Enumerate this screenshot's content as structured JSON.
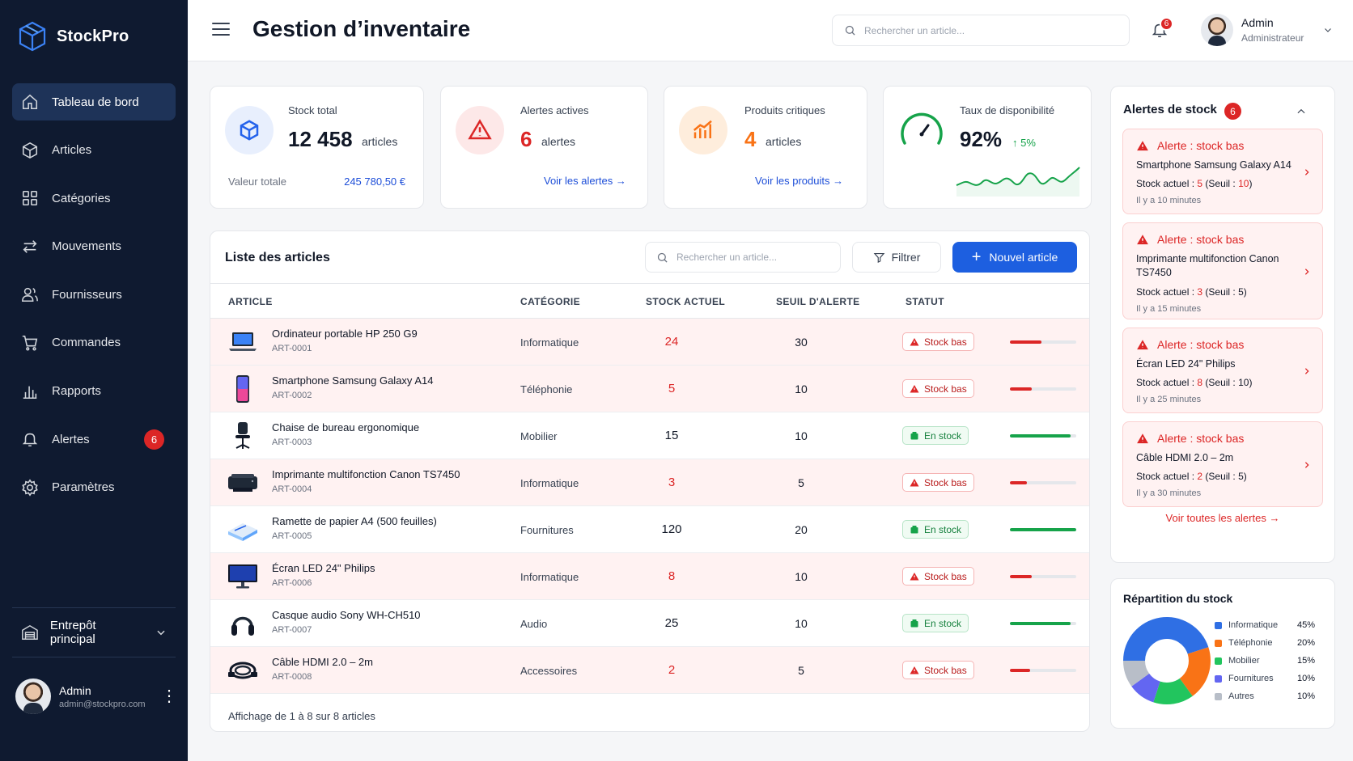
{
  "app": {
    "name": "StockPro"
  },
  "sidebar": {
    "items": [
      {
        "label": "Tableau de bord",
        "icon": "home-icon"
      },
      {
        "label": "Articles",
        "icon": "box-icon"
      },
      {
        "label": "Catégories",
        "icon": "grid-icon"
      },
      {
        "label": "Mouvements",
        "icon": "transfer-icon"
      },
      {
        "label": "Fournisseurs",
        "icon": "users-icon"
      },
      {
        "label": "Commandes",
        "icon": "cart-icon"
      },
      {
        "label": "Rapports",
        "icon": "chart-icon"
      },
      {
        "label": "Alertes",
        "icon": "bell-icon",
        "badge": "6"
      },
      {
        "label": "Paramètres",
        "icon": "gear-icon"
      }
    ],
    "warehouse": "Entrepôt principal",
    "user": {
      "name": "Admin",
      "email": "admin@stockpro.com"
    }
  },
  "header": {
    "title": "Gestion d’inventaire",
    "search_placeholder": "Rechercher un article...",
    "notif_count": "6",
    "user": {
      "name": "Admin",
      "role": "Administrateur"
    }
  },
  "kpis": {
    "stock": {
      "label": "Stock total",
      "value": "12 458",
      "unit": "articles",
      "sub_label": "Valeur totale",
      "sub_value": "245 780,50 €"
    },
    "alerts": {
      "label": "Alertes actives",
      "value": "6",
      "unit": "alertes",
      "link": "Voir les alertes →"
    },
    "critical": {
      "label": "Produits critiques",
      "value": "4",
      "unit": "articles",
      "link": "Voir les produits →"
    },
    "availability": {
      "label": "Taux de disponibilité",
      "value": "92%",
      "delta": "↑ 5%"
    }
  },
  "list": {
    "title": "Liste des articles",
    "search_placeholder": "Rechercher un article...",
    "filter_label": "Filtrer",
    "new_label": "Nouvel article",
    "columns": [
      "ARTICLE",
      "CATÉGORIE",
      "STOCK ACTUEL",
      "SEUIL D'ALERTE",
      "STATUT"
    ],
    "rows": [
      {
        "name": "Ordinateur portable HP 250 G9",
        "ref": "ART-0001",
        "category": "Informatique",
        "stock": "24",
        "threshold": "30",
        "status": "Stock bas",
        "level": "bas",
        "fill": 0.48,
        "thumb": "laptop"
      },
      {
        "name": "Smartphone Samsung Galaxy A14",
        "ref": "ART-0002",
        "category": "Téléphonie",
        "stock": "5",
        "threshold": "10",
        "status": "Stock bas",
        "level": "bas",
        "fill": 0.33,
        "thumb": "phone"
      },
      {
        "name": "Chaise de bureau ergonomique",
        "ref": "ART-0003",
        "category": "Mobilier",
        "stock": "15",
        "threshold": "10",
        "status": "En stock",
        "level": "ok",
        "fill": 0.92,
        "thumb": "chair"
      },
      {
        "name": "Imprimante multifonction Canon TS7450",
        "ref": "ART-0004",
        "category": "Informatique",
        "stock": "3",
        "threshold": "5",
        "status": "Stock bas",
        "level": "bas",
        "fill": 0.25,
        "thumb": "printer"
      },
      {
        "name": "Ramette de papier A4 (500 feuilles)",
        "ref": "ART-0005",
        "category": "Fournitures",
        "stock": "120",
        "threshold": "20",
        "status": "En stock",
        "level": "ok",
        "fill": 1.0,
        "thumb": "paper"
      },
      {
        "name": "Écran LED 24\" Philips",
        "ref": "ART-0006",
        "category": "Informatique",
        "stock": "8",
        "threshold": "10",
        "status": "Stock bas",
        "level": "bas",
        "fill": 0.33,
        "thumb": "monitor"
      },
      {
        "name": "Casque audio Sony WH-CH510",
        "ref": "ART-0007",
        "category": "Audio",
        "stock": "25",
        "threshold": "10",
        "status": "En stock",
        "level": "ok",
        "fill": 0.92,
        "thumb": "headphones"
      },
      {
        "name": "Câble HDMI 2.0 – 2m",
        "ref": "ART-0008",
        "category": "Accessoires",
        "stock": "2",
        "threshold": "5",
        "status": "Stock bas",
        "level": "bas",
        "fill": 0.3,
        "thumb": "cable"
      }
    ],
    "footer": "Affichage de 1 à 8 sur 8 articles"
  },
  "alerts_panel": {
    "title": "Alertes de stock",
    "count": "6",
    "items": [
      {
        "head": "Alerte : stock bas",
        "name": "Smartphone Samsung Galaxy A14",
        "stock_label": "Stock actuel : ",
        "stock": "5",
        "seuil_label": " (Seuil : ",
        "seuil": "10",
        "seuil_end": ")",
        "time": "Il y a 10 minutes"
      },
      {
        "head": "Alerte : stock bas",
        "name": "Imprimante multifonction Canon TS7450",
        "stock_label": "Stock actuel : ",
        "stock": "3",
        "seuil_label": " (Seuil : ",
        "seuil": "5",
        "seuil_end": ")",
        "time": "Il y a 15 minutes"
      },
      {
        "head": "Alerte : stock bas",
        "name": "Écran LED 24\" Philips",
        "stock_label": "Stock actuel : ",
        "stock": "8",
        "seuil_label": " (Seuil : ",
        "seuil": "10",
        "seuil_end": ")",
        "time": "Il y a 25 minutes"
      },
      {
        "head": "Alerte : stock bas",
        "name": "Câble HDMI 2.0 – 2m",
        "stock_label": "Stock actuel : ",
        "stock": "2",
        "seuil_label": " (Seuil : ",
        "seuil": "5",
        "seuil_end": ")",
        "time": "Il y a 30 minutes"
      }
    ],
    "all_link": "Voir toutes les alertes →"
  },
  "distribution": {
    "title": "Répartition du stock",
    "items": [
      {
        "label": "Informatique",
        "pct": "45%",
        "value": 45,
        "color": "#2f6fe4"
      },
      {
        "label": "Téléphonie",
        "pct": "20%",
        "value": 20,
        "color": "#f97316"
      },
      {
        "label": "Mobilier",
        "pct": "15%",
        "value": 15,
        "color": "#22c55e"
      },
      {
        "label": "Fournitures",
        "pct": "10%",
        "value": 10,
        "color": "#6366f1"
      },
      {
        "label": "Autres",
        "pct": "10%",
        "value": 10,
        "color": "#b8bec8"
      }
    ]
  },
  "colors": {
    "primary": "#1d5fe0",
    "danger": "#dc2626",
    "success": "#16a34a",
    "sidebar": "#0f1a30"
  }
}
